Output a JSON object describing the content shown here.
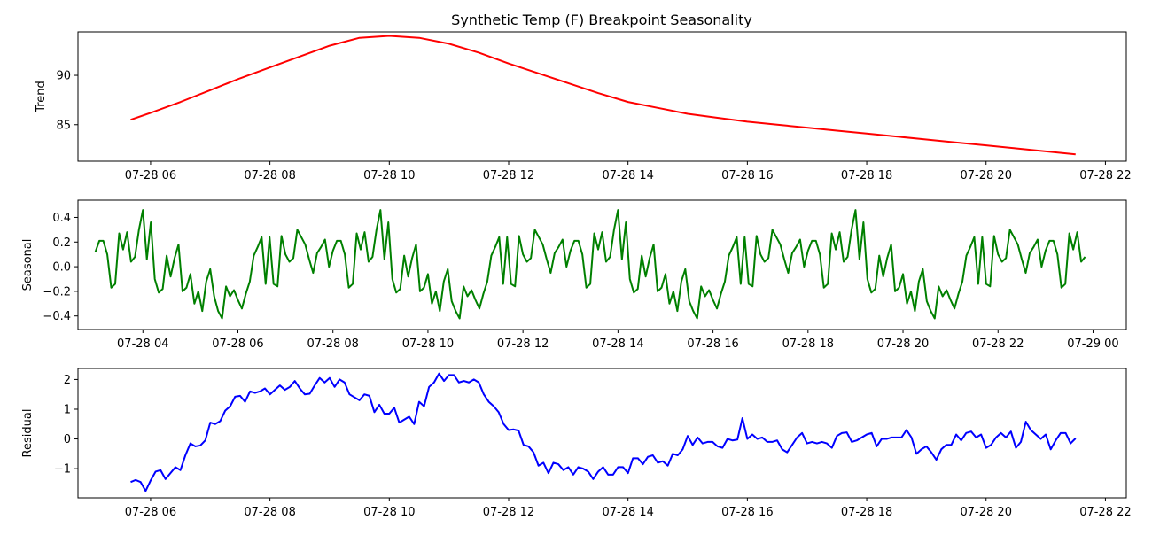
{
  "chart_data": [
    {
      "type": "line",
      "title": "Synthetic Temp (F) Breakpoint Seasonality",
      "ylabel": "Trend",
      "xlim": [
        "07-28 04:47",
        "07-28 22:21"
      ],
      "ylim": [
        81.3,
        94.4
      ],
      "yticks": [
        85,
        90
      ],
      "xticks": [
        "07-28 06",
        "07-28 08",
        "07-28 10",
        "07-28 12",
        "07-28 14",
        "07-28 16",
        "07-28 18",
        "07-28 20",
        "07-28 22"
      ],
      "grid": false,
      "color": "#ff0000",
      "series": [
        {
          "x": [
            "07-28 05:40",
            "07-28 06:00",
            "07-28 06:30",
            "07-28 07:00",
            "07-28 07:30",
            "07-28 08:00",
            "07-28 08:30",
            "07-28 09:00",
            "07-28 09:30",
            "07-28 10:00",
            "07-28 10:30",
            "07-28 11:00",
            "07-28 11:30",
            "07-28 12:00",
            "07-28 12:30",
            "07-28 13:00",
            "07-28 13:30",
            "07-28 14:00",
            "07-28 14:30",
            "07-28 15:00",
            "07-28 15:30",
            "07-28 16:00",
            "07-28 16:30",
            "07-28 17:00",
            "07-28 17:30",
            "07-28 18:00",
            "07-28 18:30",
            "07-28 19:00",
            "07-28 19:30",
            "07-28 20:00",
            "07-28 20:30",
            "07-28 21:00",
            "07-28 21:30"
          ],
          "values": [
            85.5,
            86.2,
            87.3,
            88.5,
            89.7,
            90.8,
            91.9,
            93.0,
            93.8,
            94.0,
            93.8,
            93.2,
            92.3,
            91.2,
            90.2,
            89.2,
            88.2,
            87.3,
            86.7,
            86.1,
            85.7,
            85.3,
            85.0,
            84.7,
            84.4,
            84.1,
            83.8,
            83.5,
            83.2,
            82.9,
            82.6,
            82.3,
            82.0
          ]
        }
      ]
    },
    {
      "type": "line",
      "ylabel": "Seasonal",
      "xlim": [
        "07-28 02:38",
        "07-29 00:42"
      ],
      "ylim": [
        -0.51,
        0.54
      ],
      "yticks": [
        -0.4,
        -0.2,
        0.0,
        0.2,
        0.4
      ],
      "ytick_labels": [
        "−0.4",
        "−0.2",
        "0.0",
        "0.2",
        "0.4"
      ],
      "xticks": [
        "07-28 04",
        "07-28 06",
        "07-28 08",
        "07-28 10",
        "07-28 12",
        "07-28 14",
        "07-28 16",
        "07-28 18",
        "07-28 20",
        "07-28 22",
        "07-29 00"
      ],
      "grid": false,
      "color": "#008000",
      "series": [
        {
          "x_start": "07-28 03:00",
          "x_step_minutes": 5,
          "values": [
            0.12,
            0.21,
            0.21,
            0.1,
            -0.17,
            -0.14,
            0.27,
            0.14,
            0.28,
            0.04,
            0.08,
            0.3,
            0.46,
            0.06,
            0.36,
            -0.1,
            -0.21,
            -0.18,
            0.09,
            -0.08,
            0.07,
            0.18,
            -0.2,
            -0.17,
            -0.06,
            -0.3,
            -0.2,
            -0.36,
            -0.12,
            -0.02,
            -0.24,
            -0.36,
            -0.42,
            -0.16,
            -0.24,
            -0.19,
            -0.27,
            -0.34,
            -0.22,
            -0.12,
            0.09,
            0.16,
            0.24,
            -0.14,
            0.24,
            -0.14,
            -0.16,
            0.25,
            0.1,
            0.04,
            0.07,
            0.3,
            0.24,
            0.18,
            0.06,
            -0.05,
            0.11,
            0.16,
            0.22,
            0.0,
            0.13,
            0.21,
            0.21,
            0.1,
            -0.17,
            -0.14,
            0.27,
            0.14,
            0.28,
            0.04,
            0.08,
            0.3,
            0.46,
            0.06,
            0.36,
            -0.1,
            -0.21,
            -0.18,
            0.09,
            -0.08,
            0.07,
            0.18,
            -0.2,
            -0.17,
            -0.06,
            -0.3,
            -0.2,
            -0.36,
            -0.12,
            -0.02,
            -0.28,
            -0.36,
            -0.42,
            -0.16,
            -0.24,
            -0.19,
            -0.27,
            -0.34,
            -0.22,
            -0.12,
            0.09,
            0.16,
            0.24,
            -0.14,
            0.24,
            -0.14,
            -0.16,
            0.25,
            0.1,
            0.04,
            0.07,
            0.3,
            0.24,
            0.18,
            0.06,
            -0.05,
            0.11,
            0.16,
            0.22,
            0.0,
            0.13,
            0.21,
            0.21,
            0.1,
            -0.17,
            -0.14,
            0.27,
            0.14,
            0.28,
            0.04,
            0.08,
            0.3,
            0.46,
            0.06,
            0.36,
            -0.1,
            -0.21,
            -0.18,
            0.09,
            -0.08,
            0.07,
            0.18,
            -0.2,
            -0.17,
            -0.06,
            -0.3,
            -0.2,
            -0.36,
            -0.12,
            -0.02,
            -0.28,
            -0.36,
            -0.42,
            -0.16,
            -0.24,
            -0.19,
            -0.27,
            -0.34,
            -0.22,
            -0.12,
            0.09,
            0.16,
            0.24,
            -0.14,
            0.24,
            -0.14,
            -0.16,
            0.25,
            0.1,
            0.04,
            0.07,
            0.3,
            0.24,
            0.18,
            0.06,
            -0.05,
            0.11,
            0.16,
            0.22,
            0.0,
            0.13,
            0.21,
            0.21,
            0.1,
            -0.17,
            -0.14,
            0.27,
            0.14,
            0.28,
            0.04,
            0.08,
            0.3,
            0.46,
            0.06,
            0.36,
            -0.1,
            -0.21,
            -0.18,
            0.09,
            -0.08,
            0.07,
            0.18,
            -0.2,
            -0.17,
            -0.06,
            -0.3,
            -0.2,
            -0.36,
            -0.12,
            -0.02,
            -0.28,
            -0.36,
            -0.42,
            -0.16,
            -0.24,
            -0.19,
            -0.27,
            -0.34,
            -0.22,
            -0.12,
            0.09,
            0.16,
            0.24,
            -0.14,
            0.24,
            -0.14,
            -0.16,
            0.25,
            0.1,
            0.04,
            0.07,
            0.3,
            0.24,
            0.18,
            0.06,
            -0.05,
            0.11,
            0.16,
            0.22,
            0.0,
            0.13,
            0.21,
            0.21,
            0.1,
            -0.17,
            -0.14,
            0.27,
            0.14,
            0.28,
            0.04,
            0.08
          ]
        }
      ]
    },
    {
      "type": "line",
      "ylabel": "Residual",
      "xlim": [
        "07-28 04:47",
        "07-28 22:21"
      ],
      "ylim": [
        -1.98,
        2.37
      ],
      "yticks": [
        -1,
        0,
        1,
        2
      ],
      "ytick_labels": [
        "−1",
        "0",
        "1",
        "2"
      ],
      "xticks": [
        "07-28 06",
        "07-28 08",
        "07-28 10",
        "07-28 12",
        "07-28 14",
        "07-28 16",
        "07-28 18",
        "07-28 20",
        "07-28 22"
      ],
      "grid": false,
      "color": "#0000ff",
      "series": [
        {
          "x_start": "07-28 05:40",
          "x_step_minutes": 5,
          "values": [
            -1.45,
            -1.38,
            -1.45,
            -1.75,
            -1.4,
            -1.1,
            -1.05,
            -1.35,
            -1.15,
            -0.95,
            -1.05,
            -0.55,
            -0.15,
            -0.25,
            -0.22,
            -0.05,
            0.55,
            0.5,
            0.6,
            0.95,
            1.1,
            1.42,
            1.45,
            1.25,
            1.6,
            1.55,
            1.6,
            1.7,
            1.5,
            1.65,
            1.8,
            1.65,
            1.75,
            1.95,
            1.7,
            1.5,
            1.52,
            1.8,
            2.05,
            1.9,
            2.05,
            1.75,
            2.0,
            1.9,
            1.5,
            1.4,
            1.3,
            1.5,
            1.45,
            0.9,
            1.15,
            0.85,
            0.85,
            1.05,
            0.55,
            0.65,
            0.75,
            0.5,
            1.25,
            1.1,
            1.75,
            1.9,
            2.2,
            1.95,
            2.15,
            2.15,
            1.9,
            1.95,
            1.9,
            2.0,
            1.9,
            1.5,
            1.25,
            1.1,
            0.9,
            0.5,
            0.3,
            0.32,
            0.28,
            -0.2,
            -0.25,
            -0.45,
            -0.9,
            -0.8,
            -1.15,
            -0.8,
            -0.85,
            -1.05,
            -0.95,
            -1.2,
            -0.95,
            -1.0,
            -1.1,
            -1.35,
            -1.1,
            -0.95,
            -1.2,
            -1.2,
            -0.95,
            -0.95,
            -1.15,
            -0.65,
            -0.65,
            -0.85,
            -0.6,
            -0.55,
            -0.8,
            -0.75,
            -0.9,
            -0.5,
            -0.55,
            -0.35,
            0.1,
            -0.2,
            0.05,
            -0.15,
            -0.1,
            -0.1,
            -0.25,
            -0.3,
            0.0,
            -0.05,
            -0.02,
            0.7,
            0.0,
            0.15,
            0.0,
            0.05,
            -0.1,
            -0.1,
            -0.05,
            -0.35,
            -0.45,
            -0.2,
            0.05,
            0.2,
            -0.15,
            -0.1,
            -0.15,
            -0.1,
            -0.15,
            -0.3,
            0.1,
            0.2,
            0.22,
            -0.1,
            -0.05,
            0.05,
            0.15,
            0.2,
            -0.25,
            0.0,
            0.0,
            0.05,
            0.05,
            0.05,
            0.3,
            0.05,
            -0.5,
            -0.35,
            -0.25,
            -0.45,
            -0.7,
            -0.35,
            -0.2,
            -0.2,
            0.15,
            -0.05,
            0.2,
            0.25,
            0.05,
            0.15,
            -0.3,
            -0.2,
            0.05,
            0.2,
            0.05,
            0.25,
            -0.3,
            -0.1,
            0.58,
            0.3,
            0.15,
            0.0,
            0.15,
            -0.35,
            -0.05,
            0.2,
            0.2,
            -0.15,
            0.02
          ]
        }
      ]
    }
  ]
}
